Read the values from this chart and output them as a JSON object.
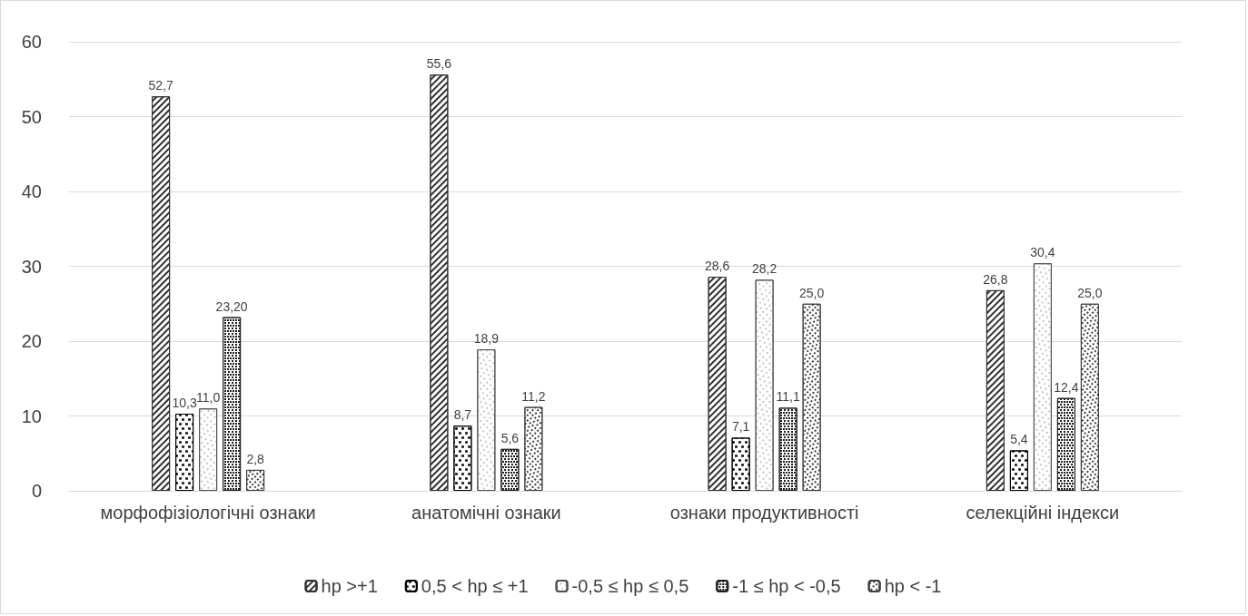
{
  "chart_data": {
    "type": "bar",
    "categories": [
      "морфофізіологічні ознаки",
      "анатомічні ознаки",
      "ознаки продуктивності",
      "селекційні індекси"
    ],
    "series": [
      {
        "name": "hp >+1",
        "color": "#303030",
        "values": [
          52.7,
          55.6,
          28.6,
          26.8
        ],
        "value_labels": [
          "52,7",
          "55,6",
          "28,6",
          "26,8"
        ]
      },
      {
        "name": "0,5 < hp ≤ +1",
        "color": "#000000",
        "values": [
          10.3,
          8.7,
          7.1,
          5.4
        ],
        "value_labels": [
          "10,3",
          "8,7",
          "7,1",
          "5,4"
        ]
      },
      {
        "name": "-0,5 ≤ hp ≤ 0,5",
        "color": "#505050",
        "values": [
          11.0,
          18.9,
          28.2,
          30.4
        ],
        "value_labels": [
          "11,0",
          "18,9",
          "28,2",
          "30,4"
        ]
      },
      {
        "name": "-1 ≤ hp < -0,5",
        "color": "#202020",
        "values": [
          23.2,
          5.6,
          11.1,
          12.4
        ],
        "value_labels": [
          "23,20",
          "5,6",
          "11,1",
          "12,4"
        ]
      },
      {
        "name": "hp < -1",
        "color": "#404040",
        "values": [
          2.8,
          11.2,
          25.0,
          25.0
        ],
        "value_labels": [
          "2,8",
          "11,2",
          "25,0",
          "25,0"
        ]
      }
    ],
    "ylim": [
      0,
      60
    ],
    "yticks": [
      0,
      10,
      20,
      30,
      40,
      50,
      60
    ],
    "grid": "y",
    "legend": "bottom"
  }
}
